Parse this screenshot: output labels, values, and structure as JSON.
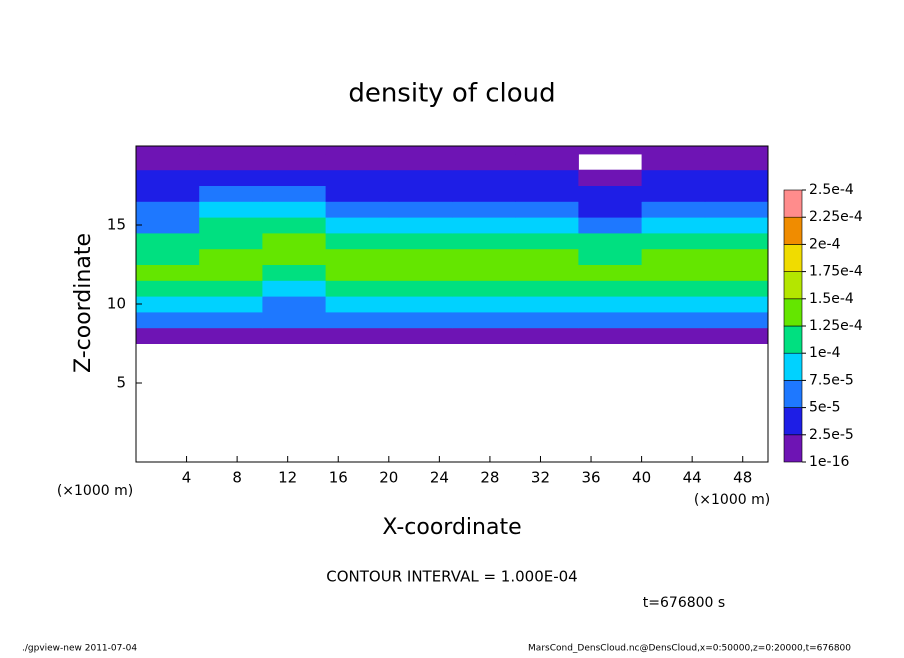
{
  "chart_data": {
    "type": "heatmap",
    "title": "density of cloud",
    "x_label": "X-coordinate",
    "y_label": "Z-coordinate",
    "x_unit": "(×1000 m)",
    "y_unit": "(×1000 m)",
    "contour_note": "CONTOUR INTERVAL = 1.000E-04",
    "time_note": "t=676800 s",
    "footer_left": "./gpview-new  2011-07-04",
    "footer_right": "MarsCond_DensCloud.nc@DensCloud,x=0:50000,z=0:20000,t=676800",
    "xlim": [
      0,
      50
    ],
    "ylim": [
      0,
      20
    ],
    "xticks": [
      4,
      8,
      12,
      16,
      20,
      24,
      28,
      32,
      36,
      40,
      44,
      48
    ],
    "yticks": [
      5,
      10,
      15
    ],
    "x_edges": [
      0,
      5,
      10,
      15,
      20,
      25,
      30,
      35,
      40,
      45,
      50
    ],
    "z_edges": [
      7.5,
      8.5,
      9.5,
      10.5,
      11.5,
      12.5,
      13.5,
      14.5,
      15.5,
      16.5,
      17.5,
      18.5,
      19.5,
      20
    ],
    "values": [
      [
        1e-05,
        1e-05,
        1e-05,
        1e-05,
        1e-05,
        1e-05,
        1e-05,
        1e-05,
        1e-05,
        1e-05
      ],
      [
        6e-05,
        6e-05,
        7e-05,
        6e-05,
        6e-05,
        6e-05,
        6e-05,
        6e-05,
        6e-05,
        6e-05
      ],
      [
        8e-05,
        8e-05,
        6e-05,
        8e-05,
        8e-05,
        8e-05,
        8e-05,
        8e-05,
        8e-05,
        8e-05
      ],
      [
        0.00011,
        0.00011,
        9e-05,
        0.00011,
        0.00011,
        0.00011,
        0.00011,
        0.00011,
        0.00011,
        0.00011
      ],
      [
        0.00013,
        0.00013,
        0.00012,
        0.00013,
        0.00013,
        0.00013,
        0.00013,
        0.00013,
        0.00013,
        0.00013
      ],
      [
        0.00012,
        0.00013,
        0.00013,
        0.00013,
        0.00013,
        0.00013,
        0.00013,
        0.00012,
        0.00013,
        0.00013
      ],
      [
        0.00011,
        0.00012,
        0.00013,
        0.00011,
        0.00011,
        0.00011,
        0.00011,
        0.0001,
        0.00011,
        0.00011
      ],
      [
        7e-05,
        0.0001,
        0.00011,
        8e-05,
        9e-05,
        9e-05,
        8e-05,
        6e-05,
        8e-05,
        9e-05
      ],
      [
        6e-05,
        8e-05,
        9e-05,
        6e-05,
        6e-05,
        5e-05,
        5e-05,
        4e-05,
        5e-05,
        6e-05
      ],
      [
        4e-05,
        5e-05,
        6e-05,
        4e-05,
        4e-05,
        4e-05,
        3e-05,
        3e-05,
        4e-05,
        4e-05
      ],
      [
        3e-05,
        3e-05,
        4e-05,
        3e-05,
        3e-05,
        3e-05,
        3e-05,
        2e-05,
        3e-05,
        3e-05
      ],
      [
        2e-05,
        2e-05,
        2e-05,
        2e-05,
        2e-05,
        2e-05,
        2e-05,
        null,
        2e-05,
        2e-05
      ],
      [
        1e-05,
        1e-05,
        1e-05,
        1e-05,
        1e-05,
        1e-05,
        1e-05,
        1e-05,
        1e-05,
        1e-05
      ]
    ],
    "levels": [
      {
        "value": 1e-16,
        "label": "1e-16"
      },
      {
        "value": 2.5e-05,
        "label": "2.5e-5"
      },
      {
        "value": 5e-05,
        "label": "5e-5"
      },
      {
        "value": 7.5e-05,
        "label": "7.5e-5"
      },
      {
        "value": 0.0001,
        "label": "1e-4"
      },
      {
        "value": 0.000125,
        "label": "1.25e-4"
      },
      {
        "value": 0.00015,
        "label": "1.5e-4"
      },
      {
        "value": 0.000175,
        "label": "1.75e-4"
      },
      {
        "value": 0.0002,
        "label": "2e-4"
      },
      {
        "value": 0.000225,
        "label": "2.25e-4"
      },
      {
        "value": 0.00025,
        "label": "2.5e-4"
      }
    ],
    "colors": [
      "#6e14b4",
      "#1e1ee6",
      "#1e78ff",
      "#00d2ff",
      "#00e080",
      "#64e600",
      "#b4e600",
      "#f0dc00",
      "#f08c00",
      "#ff8c8c"
    ]
  }
}
